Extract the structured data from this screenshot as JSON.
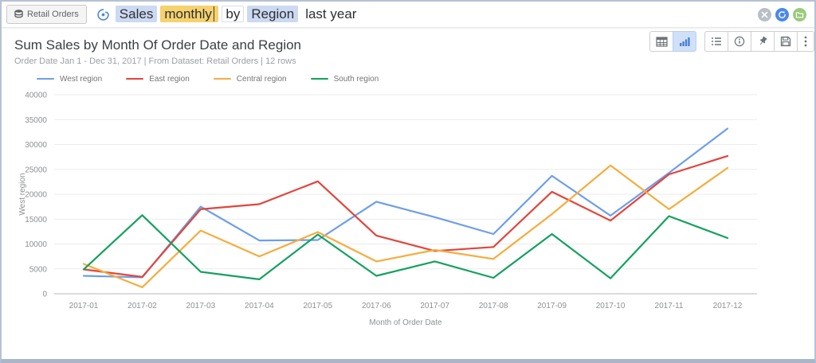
{
  "topbar": {
    "dataset_button": {
      "label": "Retail Orders"
    },
    "query_tokens": [
      {
        "text": "Sales",
        "highlight": "blue",
        "cursor": false
      },
      {
        "text": "monthly",
        "highlight": "yellow",
        "cursor": true
      },
      {
        "text": "by",
        "highlight": "outline",
        "cursor": false
      },
      {
        "text": "Region",
        "highlight": "blue",
        "cursor": false
      },
      {
        "text": "last year",
        "highlight": "none",
        "cursor": false
      }
    ],
    "action_icons": [
      "clear",
      "refresh",
      "open-folder"
    ]
  },
  "header": {
    "title": "Sum Sales by Month Of Order Date and Region",
    "subtitle": "Order Date Jan 1 - Dec 31, 2017 | From Dataset: Retail Orders | 12 rows"
  },
  "toolbar": {
    "buttons": [
      "table-view",
      "chart-view",
      "list-options",
      "info",
      "pin",
      "save",
      "more"
    ],
    "active_button": "chart-view",
    "active_color": "#cfe0f8",
    "icon_color": "#6d7377",
    "active_icon_color": "#4a80d6"
  },
  "chart_data": {
    "type": "line",
    "title": "",
    "x": [
      "2017-01",
      "2017-02",
      "2017-03",
      "2017-04",
      "2017-05",
      "2017-06",
      "2017-07",
      "2017-08",
      "2017-09",
      "2017-10",
      "2017-11",
      "2017-12"
    ],
    "xlabel": "Month of Order Date",
    "ylabel": "West region",
    "ylim": [
      0,
      40000
    ],
    "ytick_step": 5000,
    "grid": "horizontal",
    "legend_position": "top",
    "series": [
      {
        "name": "West region",
        "color": "#6d9eeb",
        "values": [
          3600,
          3300,
          17500,
          10700,
          10800,
          18500,
          15400,
          12000,
          23700,
          15700,
          24300,
          33200
        ]
      },
      {
        "name": "East region",
        "color": "#e1453b",
        "values": [
          4900,
          3400,
          17000,
          18000,
          22600,
          11700,
          8600,
          9400,
          20500,
          14700,
          24000,
          27700
        ]
      },
      {
        "name": "Central region",
        "color": "#f5ad3e",
        "values": [
          6000,
          1300,
          12700,
          7500,
          12400,
          6500,
          8800,
          7000,
          16000,
          25800,
          17000,
          25300
        ]
      },
      {
        "name": "South region",
        "color": "#13a15f",
        "values": [
          4900,
          15800,
          4400,
          2900,
          11900,
          3600,
          6500,
          3200,
          12000,
          3100,
          15600,
          11200
        ]
      }
    ]
  }
}
